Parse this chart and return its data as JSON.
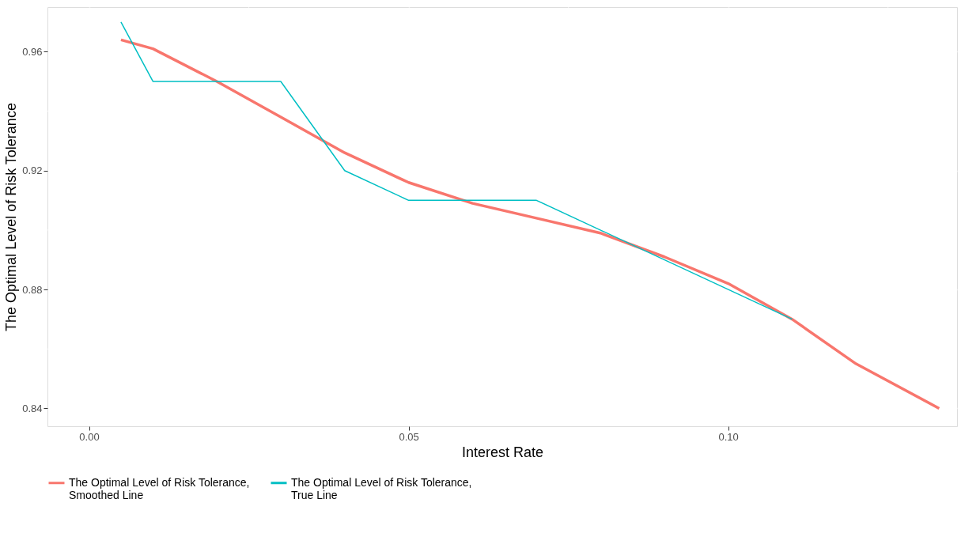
{
  "chart_data": {
    "type": "line",
    "xlabel": "Interest Rate",
    "ylabel": "The Optimal Level of Risk Tolerance",
    "xlim": [
      -0.0065,
      0.1358
    ],
    "xticks": [
      {
        "value": 0,
        "label": "0.00"
      },
      0.05,
      {
        "value": 0.1,
        "label": "0.10"
      }
    ],
    "ylim": [
      0.834,
      0.975
    ],
    "yticks": [
      0.84,
      0.88,
      0.92,
      0.96
    ],
    "grid": true,
    "legend": "bottom",
    "series": [
      {
        "name": "The Optimal Level of Risk Tolerance, Smoothed Line",
        "color": "#f8766d",
        "x": [
          0.005,
          0.01,
          0.02,
          0.03,
          0.04,
          0.05,
          0.06,
          0.07,
          0.08,
          0.09,
          0.1,
          0.11,
          0.12,
          0.133
        ],
        "values": [
          0.964,
          0.961,
          0.95,
          0.938,
          0.926,
          0.916,
          0.909,
          0.904,
          0.899,
          0.891,
          0.882,
          0.87,
          0.855,
          0.84
        ]
      },
      {
        "name": "The Optimal Level of Risk Tolerance, True Line",
        "color": "#00bfc4",
        "x": [
          0.005,
          0.01,
          0.03,
          0.04,
          0.05,
          0.07,
          0.11
        ],
        "values": [
          0.97,
          0.95,
          0.95,
          0.92,
          0.91,
          0.91,
          0.87
        ]
      }
    ]
  }
}
